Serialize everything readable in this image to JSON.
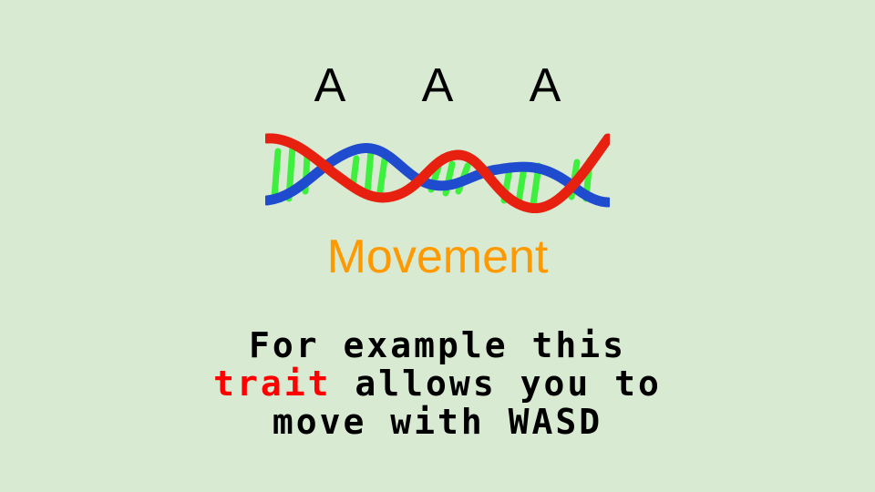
{
  "allele_letters": [
    "A",
    "A",
    "A"
  ],
  "dna_image": "dna-double-helix-icon",
  "trait": {
    "name": "Movement",
    "color": "#ff9900"
  },
  "description": {
    "line1": "For example this",
    "line2_highlight": "trait",
    "line2_rest": " allows you to",
    "line3": "move with WASD",
    "highlight_color": "#ff0000"
  }
}
